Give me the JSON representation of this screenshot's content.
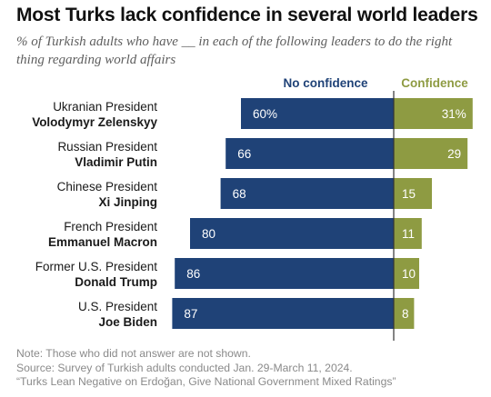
{
  "title": "Most Turks lack confidence in several world leaders",
  "subtitle": "% of Turkish adults who have __ in each of the following leaders to do the right thing regarding world affairs",
  "notes": [
    "Note: Those who did not answer are not shown.",
    "Source: Survey of Turkish adults conducted Jan. 29-March 11, 2024.",
    "“Turks Lean Negative on Erdoğan, Give National Government Mixed Ratings”"
  ],
  "colors": {
    "no_confidence": "#1f4277",
    "confidence": "#8e9b42",
    "axis": "#333333"
  },
  "chart_data": {
    "type": "bar",
    "orientation": "diverging-horizontal",
    "categories": [
      {
        "role": "Ukranian President",
        "name": "Volodymyr Zelenskyy"
      },
      {
        "role": "Russian President",
        "name": "Vladimir Putin"
      },
      {
        "role": "Chinese President",
        "name": "Xi Jinping"
      },
      {
        "role": "French President",
        "name": "Emmanuel Macron"
      },
      {
        "role": "Former U.S. President",
        "name": "Donald Trump"
      },
      {
        "role": "U.S. President",
        "name": "Joe Biden"
      }
    ],
    "series": [
      {
        "name": "No confidence",
        "values": [
          60,
          66,
          68,
          80,
          86,
          87
        ],
        "labels": [
          "60%",
          "66",
          "68",
          "80",
          "86",
          "87"
        ]
      },
      {
        "name": "Confidence",
        "values": [
          31,
          29,
          15,
          11,
          10,
          8
        ],
        "labels": [
          "31%",
          "29",
          "15",
          "11",
          "10",
          "8"
        ]
      }
    ]
  }
}
